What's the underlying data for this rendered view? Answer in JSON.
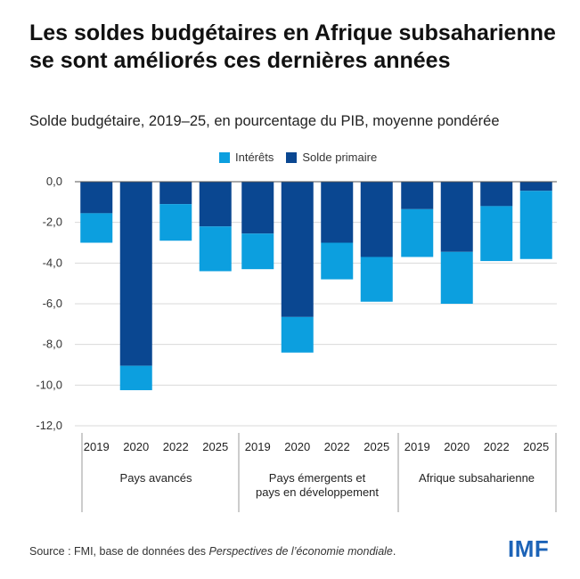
{
  "title": "Les soldes budgétaires en Afrique subsaharienne se sont améliorés ces dernières années",
  "subtitle": "Solde budgétaire, 2019–25, en pourcentage du PIB, moyenne pondérée",
  "source": {
    "prefix": "Source : FMI, base de données des ",
    "italic": "Perspectives de l’économie mondiale",
    "suffix": "."
  },
  "logo": "IMF",
  "colors": {
    "interets": "#0c9fdf",
    "solde_primaire": "#0a4791",
    "grid": "#d9d9d9",
    "logo": "#1c63b7"
  },
  "chart_data": {
    "type": "bar",
    "stacked": true,
    "ylim": [
      -12,
      0
    ],
    "yticks": [
      "0,0",
      "-2,0",
      "-4,0",
      "-6,0",
      "-8,0",
      "-10,0",
      "-12,0"
    ],
    "legend": [
      "Intérêts",
      "Solde primaire"
    ],
    "groups": [
      {
        "label": [
          "Pays avancés"
        ],
        "years": [
          "2019",
          "2020",
          "2022",
          "2025"
        ]
      },
      {
        "label": [
          "Pays émergents et",
          "pays en développement"
        ],
        "years": [
          "2019",
          "2020",
          "2022",
          "2025"
        ]
      },
      {
        "label": [
          "Afrique subsaharienne"
        ],
        "years": [
          "2019",
          "2020",
          "2022",
          "2025"
        ]
      }
    ],
    "series": [
      {
        "name": "Solde primaire",
        "values": [
          -1.55,
          -9.05,
          -1.1,
          -2.2,
          -2.55,
          -6.65,
          -3.0,
          -3.7,
          -1.35,
          -3.45,
          -1.2,
          -0.45
        ]
      },
      {
        "name": "Intérêts",
        "values": [
          -1.45,
          -1.2,
          -1.8,
          -2.2,
          -1.75,
          -1.75,
          -1.8,
          -2.2,
          -2.35,
          -2.55,
          -2.7,
          -3.35
        ]
      }
    ]
  }
}
